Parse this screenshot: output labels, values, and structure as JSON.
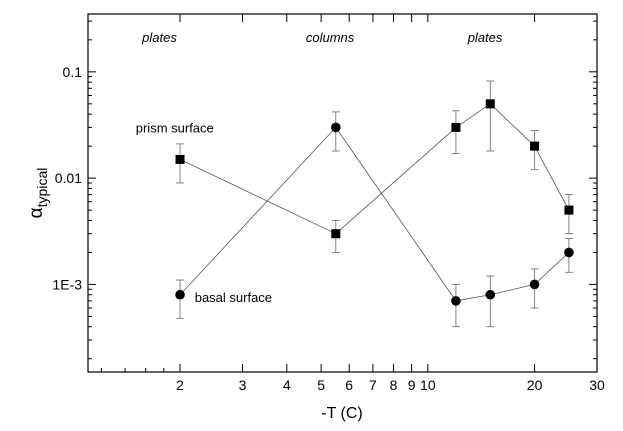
{
  "chart_data": {
    "type": "scatter",
    "xlabel": "-T  (C)",
    "ylabel_main": "α",
    "ylabel_sub": "typical",
    "x_scale": "log",
    "y_scale": "log",
    "xlim": [
      1.1,
      30
    ],
    "ylim": [
      0.00015,
      0.35
    ],
    "x_ticks": [
      {
        "value": 2,
        "label": "2"
      },
      {
        "value": 3,
        "label": "3"
      },
      {
        "value": 4,
        "label": "4"
      },
      {
        "value": 5,
        "label": "5"
      },
      {
        "value": 6,
        "label": "6"
      },
      {
        "value": 7,
        "label": "7"
      },
      {
        "value": 8,
        "label": "8"
      },
      {
        "value": 9,
        "label": "9"
      },
      {
        "value": 10,
        "label": "10"
      },
      {
        "value": 20,
        "label": "20"
      },
      {
        "value": 30,
        "label": "30"
      }
    ],
    "y_ticks": [
      {
        "value": 0.001,
        "label": "1E-3"
      },
      {
        "value": 0.01,
        "label": "0.01"
      },
      {
        "value": 0.1,
        "label": "0.1"
      }
    ],
    "grid": false,
    "series": [
      {
        "name": "prism surface",
        "marker": "square",
        "points": [
          {
            "x": 2,
            "y": 0.015,
            "y_low": 0.009,
            "y_high": 0.021
          },
          {
            "x": 5.5,
            "y": 0.003,
            "y_low": 0.002,
            "y_high": 0.004
          },
          {
            "x": 12,
            "y": 0.03,
            "y_low": 0.017,
            "y_high": 0.043
          },
          {
            "x": 15,
            "y": 0.05,
            "y_low": 0.018,
            "y_high": 0.082
          },
          {
            "x": 20,
            "y": 0.02,
            "y_low": 0.012,
            "y_high": 0.028
          },
          {
            "x": 25,
            "y": 0.005,
            "y_low": 0.003,
            "y_high": 0.007
          }
        ]
      },
      {
        "name": "basal surface",
        "marker": "circle",
        "points": [
          {
            "x": 2,
            "y": 0.0008,
            "y_low": 0.00048,
            "y_high": 0.0011
          },
          {
            "x": 5.5,
            "y": 0.03,
            "y_low": 0.018,
            "y_high": 0.042
          },
          {
            "x": 12,
            "y": 0.0007,
            "y_low": 0.0004,
            "y_high": 0.001
          },
          {
            "x": 15,
            "y": 0.0008,
            "y_low": 0.0004,
            "y_high": 0.0012
          },
          {
            "x": 20,
            "y": 0.001,
            "y_low": 0.0006,
            "y_high": 0.0014
          },
          {
            "x": 25,
            "y": 0.002,
            "y_low": 0.0013,
            "y_high": 0.0027
          }
        ]
      }
    ],
    "annotations": [
      {
        "text": "plates",
        "italic": true,
        "x": 1.75,
        "y": 0.19
      },
      {
        "text": "columns",
        "italic": true,
        "x": 5.3,
        "y": 0.19
      },
      {
        "text": "plates",
        "italic": true,
        "x": 14.5,
        "y": 0.19
      },
      {
        "text": "prism surface",
        "italic": false,
        "x": 1.5,
        "y": 0.027
      },
      {
        "text": "basal surface",
        "italic": false,
        "x": 2.2,
        "y": 0.00068
      }
    ]
  }
}
